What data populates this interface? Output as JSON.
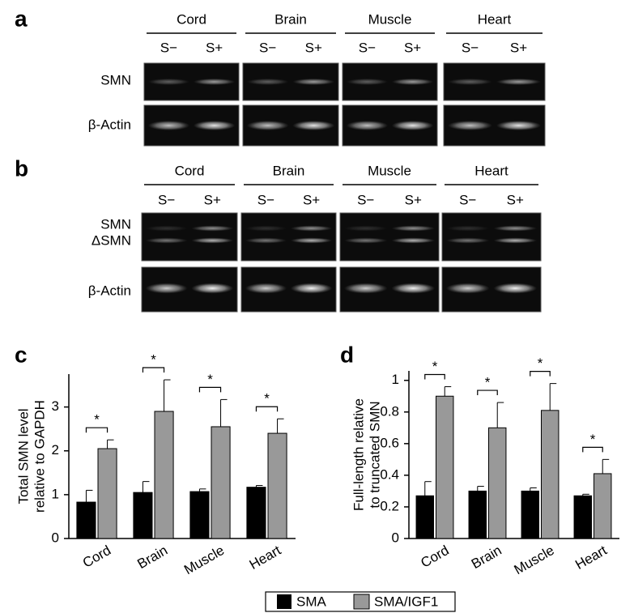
{
  "gels": [
    {
      "panel_label": "a",
      "groups": [
        "Cord",
        "Brain",
        "Muscle",
        "Heart"
      ],
      "lanes": [
        "S−",
        "S+",
        "S−",
        "S+",
        "S−",
        "S+",
        "S−",
        "S+"
      ],
      "rows": [
        "SMN",
        "β-Actin"
      ]
    },
    {
      "panel_label": "b",
      "groups": [
        "Cord",
        "Brain",
        "Muscle",
        "Heart"
      ],
      "lanes": [
        "S−",
        "S+",
        "S−",
        "S+",
        "S−",
        "S+",
        "S−",
        "S+"
      ],
      "rows": [
        "SMN",
        "ΔSMN",
        "β-Actin"
      ]
    }
  ],
  "chart_data": [
    {
      "type": "bar",
      "panel_label": "c",
      "ylabel": [
        "Total SMN level",
        "relative to GAPDH"
      ],
      "categories": [
        "Cord",
        "Brain",
        "Muscle",
        "Heart"
      ],
      "series": [
        {
          "name": "SMA",
          "color": "#000000",
          "values": [
            0.83,
            1.05,
            1.07,
            1.17
          ],
          "errors": [
            0.27,
            0.25,
            0.06,
            0.04
          ]
        },
        {
          "name": "SMA/IGF1",
          "color": "#999999",
          "values": [
            2.05,
            2.9,
            2.55,
            2.4
          ],
          "errors": [
            0.2,
            0.72,
            0.62,
            0.33
          ]
        }
      ],
      "significance": [
        "*",
        "*",
        "*",
        "*"
      ],
      "ylim": [
        0,
        3.75
      ],
      "yticks": [
        0,
        1,
        2,
        3
      ]
    },
    {
      "type": "bar",
      "panel_label": "d",
      "ylabel": [
        "Full-length relative",
        "to truncated SMN"
      ],
      "categories": [
        "Cord",
        "Brain",
        "Muscle",
        "Heart"
      ],
      "series": [
        {
          "name": "SMA",
          "color": "#000000",
          "values": [
            0.27,
            0.3,
            0.3,
            0.27
          ],
          "errors": [
            0.09,
            0.03,
            0.02,
            0.01
          ]
        },
        {
          "name": "SMA/IGF1",
          "color": "#999999",
          "values": [
            0.9,
            0.7,
            0.81,
            0.41
          ],
          "errors": [
            0.06,
            0.16,
            0.17,
            0.09
          ]
        }
      ],
      "significance": [
        "*",
        "*",
        "*",
        "*"
      ],
      "ylim": [
        0,
        1.06
      ],
      "yticks": [
        0,
        0.2,
        0.4,
        0.6,
        0.8,
        1
      ]
    }
  ]
}
